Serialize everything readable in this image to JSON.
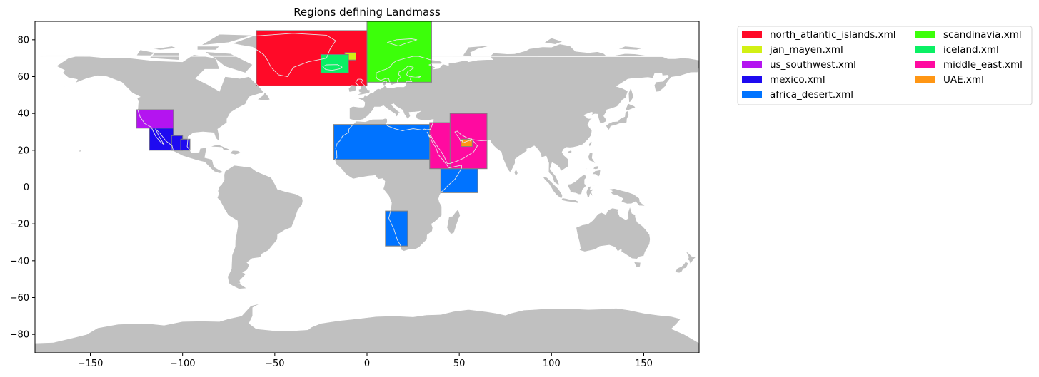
{
  "chart_data": {
    "type": "map",
    "title": "Regions defining Landmass",
    "xlim": [
      -180,
      180
    ],
    "ylim": [
      -90,
      90
    ],
    "xticks": [
      -150,
      -100,
      -50,
      0,
      50,
      100,
      150
    ],
    "yticks": [
      -80,
      -60,
      -40,
      -20,
      0,
      20,
      40,
      60,
      80
    ],
    "land_color": "#c0c0c0",
    "legend_placement": "outside-top-right",
    "legend_columns": 2,
    "regions": [
      {
        "name": "north_atlantic_islands.xml",
        "color": "#ff0a28",
        "boxes": [
          {
            "lon": [
              -60,
              0
            ],
            "lat": [
              55,
              85
            ]
          }
        ]
      },
      {
        "name": "jan_mayen.xml",
        "color": "#d2f014",
        "boxes": [
          {
            "lon": [
              -12,
              -6
            ],
            "lat": [
              69,
              73
            ]
          }
        ]
      },
      {
        "name": "us_southwest.xml",
        "color": "#b414f0",
        "boxes": [
          {
            "lon": [
              -125,
              -105
            ],
            "lat": [
              32,
              42
            ]
          }
        ]
      },
      {
        "name": "mexico.xml",
        "color": "#1e0af0",
        "boxes": [
          {
            "lon": [
              -118,
              -105
            ],
            "lat": [
              20,
              32
            ]
          },
          {
            "lon": [
              -106,
              -100
            ],
            "lat": [
              20,
              28
            ]
          },
          {
            "lon": [
              -101,
              -96
            ],
            "lat": [
              20,
              26
            ]
          }
        ]
      },
      {
        "name": "africa_desert.xml",
        "color": "#0073ff",
        "boxes": [
          {
            "lon": [
              -18,
              34
            ],
            "lat": [
              15,
              34
            ]
          },
          {
            "lon": [
              40,
              60
            ],
            "lat": [
              -3,
              10
            ]
          },
          {
            "lon": [
              10,
              22
            ],
            "lat": [
              -32,
              -13
            ]
          }
        ]
      },
      {
        "name": "scandinavia.xml",
        "color": "#3cff0a",
        "boxes": [
          {
            "lon": [
              0,
              35
            ],
            "lat": [
              57,
              90
            ]
          }
        ]
      },
      {
        "name": "iceland.xml",
        "color": "#0af064",
        "boxes": [
          {
            "lon": [
              -25,
              -10
            ],
            "lat": [
              62,
              72
            ]
          }
        ]
      },
      {
        "name": "middle_east.xml",
        "color": "#ff0aa0",
        "boxes": [
          {
            "lon": [
              34,
              46
            ],
            "lat": [
              10,
              35
            ]
          },
          {
            "lon": [
              45,
              65
            ],
            "lat": [
              10,
              40
            ]
          }
        ]
      },
      {
        "name": "UAE.xml",
        "color": "#ff9614",
        "boxes": [
          {
            "lon": [
              51,
              57
            ],
            "lat": [
              22,
              26
            ]
          }
        ]
      }
    ]
  }
}
